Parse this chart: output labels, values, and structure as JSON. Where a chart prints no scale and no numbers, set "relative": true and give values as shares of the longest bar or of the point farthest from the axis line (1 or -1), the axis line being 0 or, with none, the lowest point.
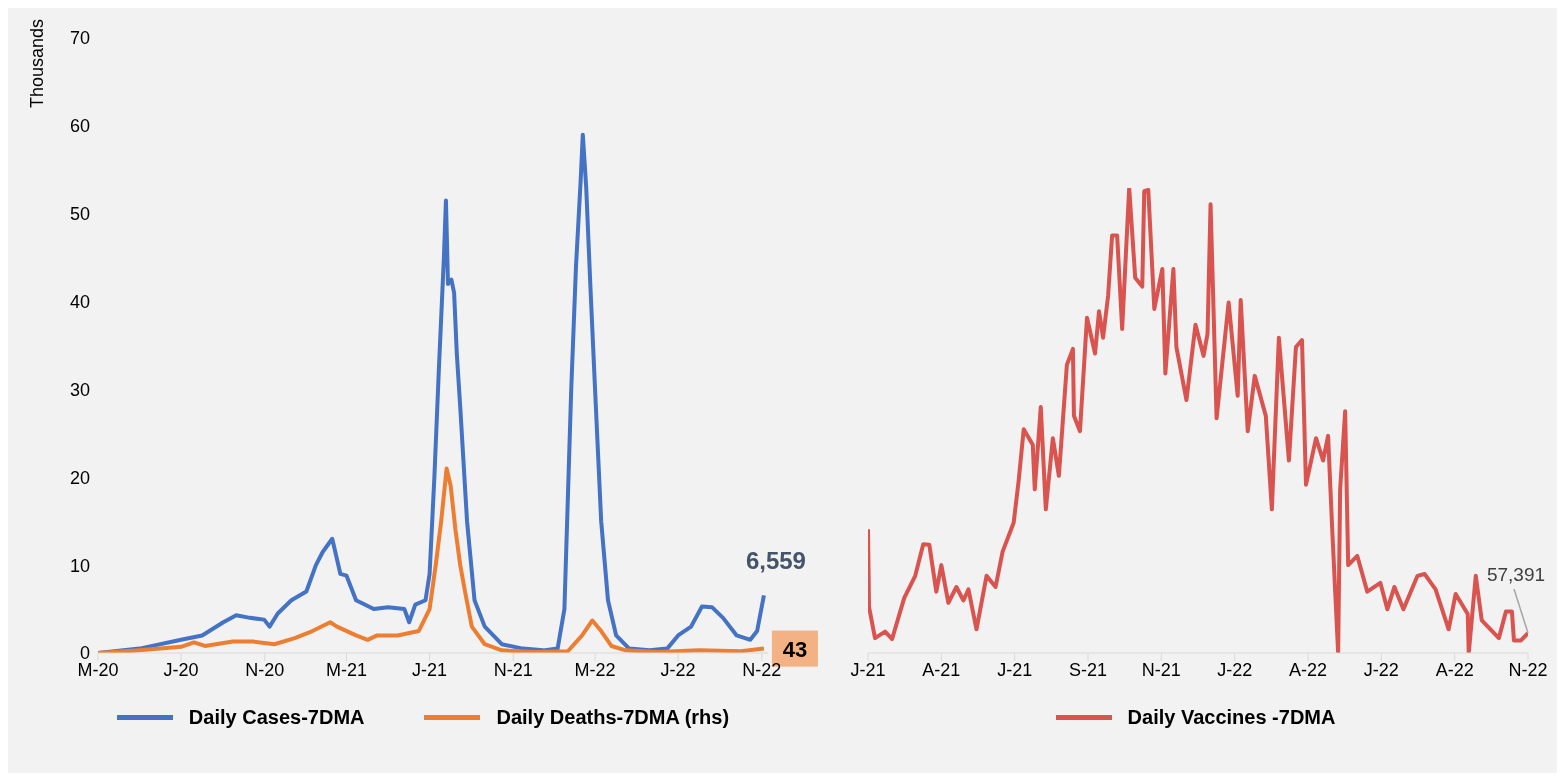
{
  "chart_data": [
    {
      "type": "line",
      "ylabel": "Thousands",
      "ylim": [
        0,
        70
      ],
      "yticks": [
        0,
        10,
        20,
        30,
        40,
        50,
        60,
        70
      ],
      "xlim": [
        "2020-03-01",
        "2022-11-10"
      ],
      "xticks": [
        {
          "value": "2020-03-01",
          "label": "M-20"
        },
        {
          "value": "2020-07-01",
          "label": "J-20"
        },
        {
          "value": "2020-11-01",
          "label": "N-20"
        },
        {
          "value": "2021-03-01",
          "label": "M-21"
        },
        {
          "value": "2021-07-01",
          "label": "J-21"
        },
        {
          "value": "2021-11-01",
          "label": "N-21"
        },
        {
          "value": "2022-03-01",
          "label": "M-22"
        },
        {
          "value": "2022-07-01",
          "label": "J-22"
        },
        {
          "value": "2022-11-01",
          "label": "N-22"
        }
      ],
      "legend": "bottom",
      "series": [
        {
          "name": "Daily Cases-7DMA",
          "color": "#4472c4",
          "x": [
            "2020-03-01",
            "2020-05-01",
            "2020-07-01",
            "2020-08-01",
            "2020-09-01",
            "2020-09-20",
            "2020-10-10",
            "2020-10-31",
            "2020-11-08",
            "2020-11-20",
            "2020-12-10",
            "2021-01-01",
            "2021-01-15",
            "2021-01-25",
            "2021-02-08",
            "2021-02-20",
            "2021-03-01",
            "2021-03-15",
            "2021-04-10",
            "2021-05-01",
            "2021-05-25",
            "2021-06-01",
            "2021-06-10",
            "2021-06-25",
            "2021-07-01",
            "2021-07-08",
            "2021-07-15",
            "2021-07-22",
            "2021-07-25",
            "2021-07-28",
            "2021-08-02",
            "2021-08-06",
            "2021-08-10",
            "2021-08-15",
            "2021-08-25",
            "2021-09-05",
            "2021-09-20",
            "2021-10-15",
            "2021-11-15",
            "2021-12-15",
            "2022-01-05",
            "2022-01-15",
            "2022-01-25",
            "2022-02-01",
            "2022-02-08",
            "2022-02-11",
            "2022-02-16",
            "2022-02-22",
            "2022-03-01",
            "2022-03-10",
            "2022-03-20",
            "2022-04-01",
            "2022-04-20",
            "2022-05-20",
            "2022-06-15",
            "2022-07-01",
            "2022-07-20",
            "2022-08-05",
            "2022-08-20",
            "2022-09-05",
            "2022-09-25",
            "2022-10-15",
            "2022-10-25",
            "2022-11-04"
          ],
          "values": [
            0,
            0.5,
            1.5,
            2,
            3.5,
            4.3,
            4,
            3.8,
            3,
            4.5,
            6,
            7,
            10,
            11.5,
            13,
            9,
            8.8,
            6,
            5,
            5.2,
            5,
            3.5,
            5.5,
            6,
            9,
            20,
            33,
            45,
            51.5,
            42,
            42.5,
            41,
            34,
            28,
            15,
            6,
            3,
            1,
            0.5,
            0.3,
            0.5,
            5,
            30,
            44,
            54,
            59,
            53,
            42,
            30,
            15,
            6,
            2,
            0.5,
            0.3,
            0.5,
            2,
            3,
            5.3,
            5.2,
            4,
            2,
            1.5,
            2.5,
            6.559
          ]
        },
        {
          "name": "Daily Deaths-7DMA (rhs)",
          "color": "#ed7d31",
          "x": [
            "2020-03-01",
            "2020-05-01",
            "2020-07-01",
            "2020-07-20",
            "2020-08-05",
            "2020-09-15",
            "2020-10-15",
            "2020-11-15",
            "2020-12-15",
            "2021-01-10",
            "2021-02-05",
            "2021-02-15",
            "2021-03-15",
            "2021-04-01",
            "2021-04-15",
            "2021-05-15",
            "2021-06-15",
            "2021-07-01",
            "2021-07-10",
            "2021-07-18",
            "2021-07-26",
            "2021-08-01",
            "2021-08-08",
            "2021-08-15",
            "2021-08-22",
            "2021-09-01",
            "2021-09-20",
            "2021-10-15",
            "2021-12-01",
            "2022-01-20",
            "2022-02-10",
            "2022-02-25",
            "2022-03-10",
            "2022-03-25",
            "2022-04-15",
            "2022-06-01",
            "2022-08-01",
            "2022-10-01",
            "2022-11-04"
          ],
          "values": [
            0,
            0.3,
            0.7,
            1.2,
            0.8,
            1.3,
            1.3,
            1,
            1.7,
            2.5,
            3.5,
            3,
            2,
            1.5,
            2,
            2,
            2.5,
            5,
            10,
            15,
            21,
            19,
            14,
            10,
            7,
            3,
            1,
            0.3,
            0.1,
            0.2,
            2,
            3.7,
            2.5,
            0.8,
            0.3,
            0.1,
            0.3,
            0.2,
            0.5
          ]
        }
      ],
      "annotations": [
        {
          "text": "6,559",
          "x": "2022-11-04",
          "y": 6.559
        },
        {
          "text": "43",
          "x": "2022-11-04",
          "y": 0.5
        }
      ]
    },
    {
      "type": "line",
      "relative": true,
      "tick_labels": "x",
      "xlim": [
        "2021-01-31",
        "2022-11-19"
      ],
      "xticks": [
        {
          "value": "2021-01-31",
          "label": "J-21"
        },
        {
          "value": "2021-04-14",
          "label": "A-21"
        },
        {
          "value": "2021-06-26",
          "label": "J-21"
        },
        {
          "value": "2021-09-07",
          "label": "S-21"
        },
        {
          "value": "2021-11-19",
          "label": "N-21"
        },
        {
          "value": "2022-01-31",
          "label": "J-22"
        },
        {
          "value": "2022-04-14",
          "label": "A-22"
        },
        {
          "value": "2022-06-26",
          "label": "J-22"
        },
        {
          "value": "2022-09-07",
          "label": "A-22"
        },
        {
          "value": "2022-11-19",
          "label": "N-22"
        }
      ],
      "legend": "bottom",
      "series": [
        {
          "name": "Daily Vaccines -7DMA",
          "color": "#d9534f",
          "x": [
            "2021-01-31",
            "2021-02-01",
            "2021-02-07",
            "2021-02-17",
            "2021-02-24",
            "2021-03-08",
            "2021-03-19",
            "2021-03-27",
            "2021-04-02",
            "2021-04-09",
            "2021-04-14",
            "2021-04-21",
            "2021-04-29",
            "2021-05-06",
            "2021-05-11",
            "2021-05-19",
            "2021-05-29",
            "2021-06-07",
            "2021-06-14",
            "2021-06-25",
            "2021-06-30",
            "2021-07-05",
            "2021-07-14",
            "2021-07-16",
            "2021-07-22",
            "2021-07-27",
            "2021-08-03",
            "2021-08-09",
            "2021-08-17",
            "2021-08-23",
            "2021-08-24",
            "2021-08-30",
            "2021-09-06",
            "2021-09-14",
            "2021-09-18",
            "2021-09-22",
            "2021-09-27",
            "2021-10-01",
            "2021-10-06",
            "2021-10-11",
            "2021-10-18",
            "2021-10-24",
            "2021-10-31",
            "2021-11-02",
            "2021-11-06",
            "2021-11-12",
            "2021-11-20",
            "2021-11-23",
            "2021-12-01",
            "2021-12-04",
            "2021-12-14",
            "2021-12-23",
            "2021-12-31",
            "2022-01-04",
            "2022-01-07",
            "2022-01-13",
            "2022-01-25",
            "2022-02-03",
            "2022-02-06",
            "2022-02-13",
            "2022-02-20",
            "2022-03-03",
            "2022-03-09",
            "2022-03-16",
            "2022-03-26",
            "2022-04-02",
            "2022-04-08",
            "2022-04-12",
            "2022-04-22",
            "2022-04-29",
            "2022-05-04",
            "2022-05-08",
            "2022-05-14",
            "2022-05-16",
            "2022-05-21",
            "2022-05-24",
            "2022-06-02",
            "2022-06-12",
            "2022-06-25",
            "2022-07-02",
            "2022-07-09",
            "2022-07-18",
            "2022-08-01",
            "2022-08-08",
            "2022-08-19",
            "2022-09-01",
            "2022-09-08",
            "2022-09-20",
            "2022-09-21",
            "2022-09-28",
            "2022-10-04",
            "2022-10-21",
            "2022-10-28",
            "2022-11-03",
            "2022-11-05",
            "2022-11-12",
            "2022-11-19"
          ],
          "values": [
            0.266,
            0.099,
            0.032,
            0.046,
            0.03,
            0.118,
            0.166,
            0.234,
            0.233,
            0.132,
            0.189,
            0.108,
            0.142,
            0.113,
            0.137,
            0.051,
            0.166,
            0.142,
            0.218,
            0.28,
            0.371,
            0.481,
            0.448,
            0.352,
            0.529,
            0.309,
            0.462,
            0.381,
            0.62,
            0.654,
            0.51,
            0.477,
            0.721,
            0.644,
            0.735,
            0.678,
            0.768,
            0.898,
            0.898,
            0.697,
            1,
            0.807,
            0.788,
            0.993,
            0.996,
            0.74,
            0.826,
            0.601,
            0.826,
            0.658,
            0.544,
            0.706,
            0.639,
            0.687,
            0.965,
            0.505,
            0.754,
            0.553,
            0.759,
            0.477,
            0.596,
            0.51,
            0.309,
            0.678,
            0.414,
            0.658,
            0.673,
            0.362,
            0.462,
            0.414,
            0.467,
            0.271,
            0,
            0.352,
            0.52,
            0.189,
            0.209,
            0.132,
            0.151,
            0.094,
            0.142,
            0.094,
            0.166,
            0.17,
            0.137,
            0.051,
            0.127,
            0.084,
            0,
            0.166,
            0.07,
            0.032,
            0.089,
            0.089,
            0.027,
            0.027,
            0.043
          ]
        }
      ],
      "annotations": [
        {
          "text": "57,391",
          "x": "2022-11-19",
          "y": 0.043
        }
      ]
    }
  ]
}
